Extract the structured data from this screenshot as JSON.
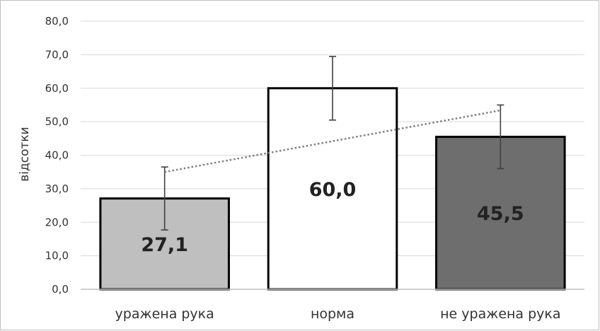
{
  "chart_data": {
    "type": "bar",
    "categories": [
      "уражена рука",
      "норма",
      "не уражена рука"
    ],
    "values": [
      27.1,
      60.0,
      45.5
    ],
    "value_labels": [
      "27,1",
      "60,0",
      "45,5"
    ],
    "error_bars": [
      {
        "low": 17.7,
        "high": 36.5
      },
      {
        "low": 50.5,
        "high": 69.5
      },
      {
        "low": 36.0,
        "high": 55.0
      }
    ],
    "trendline": {
      "style": "dotted",
      "type": "linear"
    },
    "bar_colors": [
      "#bfbfbf",
      "#ffffff",
      "#6e6e6e"
    ],
    "bar_outline": "#000000",
    "title": "",
    "xlabel": "",
    "ylabel": "відсотки",
    "ylim": [
      0,
      80
    ],
    "yticks": [
      0,
      10,
      20,
      30,
      40,
      50,
      60,
      70,
      80
    ],
    "ytick_labels": [
      "0,0",
      "10,0",
      "20,0",
      "30,0",
      "40,0",
      "50,0",
      "60,0",
      "70,0",
      "80,0"
    ],
    "grid": true,
    "legend": "none"
  }
}
